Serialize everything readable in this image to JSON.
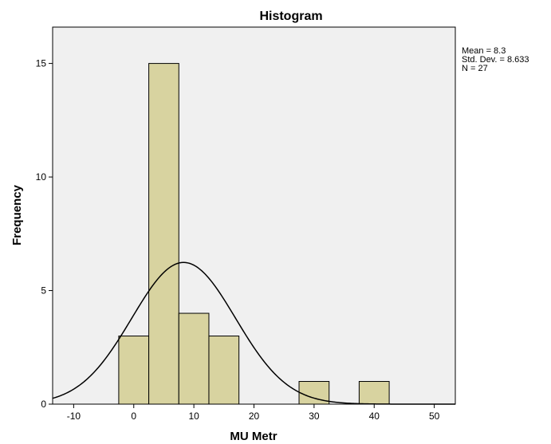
{
  "chart_data": {
    "type": "bar",
    "title": "Histogram",
    "xlabel": "MU Metr",
    "ylabel": "Frequency",
    "xlim": [
      -13.5,
      53.5
    ],
    "ylim": [
      0,
      16.6
    ],
    "x_ticks": [
      -10,
      0,
      10,
      20,
      30,
      40,
      50
    ],
    "y_ticks": [
      0,
      5,
      10,
      15
    ],
    "bins": [
      {
        "start": -2.5,
        "end": 2.5,
        "count": 3
      },
      {
        "start": 2.5,
        "end": 7.5,
        "count": 15
      },
      {
        "start": 7.5,
        "end": 12.5,
        "count": 4
      },
      {
        "start": 12.5,
        "end": 17.5,
        "count": 3
      },
      {
        "start": 27.5,
        "end": 32.5,
        "count": 1
      },
      {
        "start": 37.5,
        "end": 42.5,
        "count": 1
      }
    ],
    "normal_curve": {
      "mean": 8.3,
      "std_dev": 8.633,
      "n": 27,
      "bin_width": 5
    },
    "stats": {
      "mean_text": "Mean = 8.3",
      "std_text": "Std. Dev. = 8.633",
      "n_text": "N = 27"
    },
    "grid": false,
    "legend": "right",
    "colors": {
      "bar_fill": "#d8d3a0",
      "bar_stroke": "#000000",
      "plot_bg": "#f0f0f0",
      "curve": "#000000"
    }
  }
}
